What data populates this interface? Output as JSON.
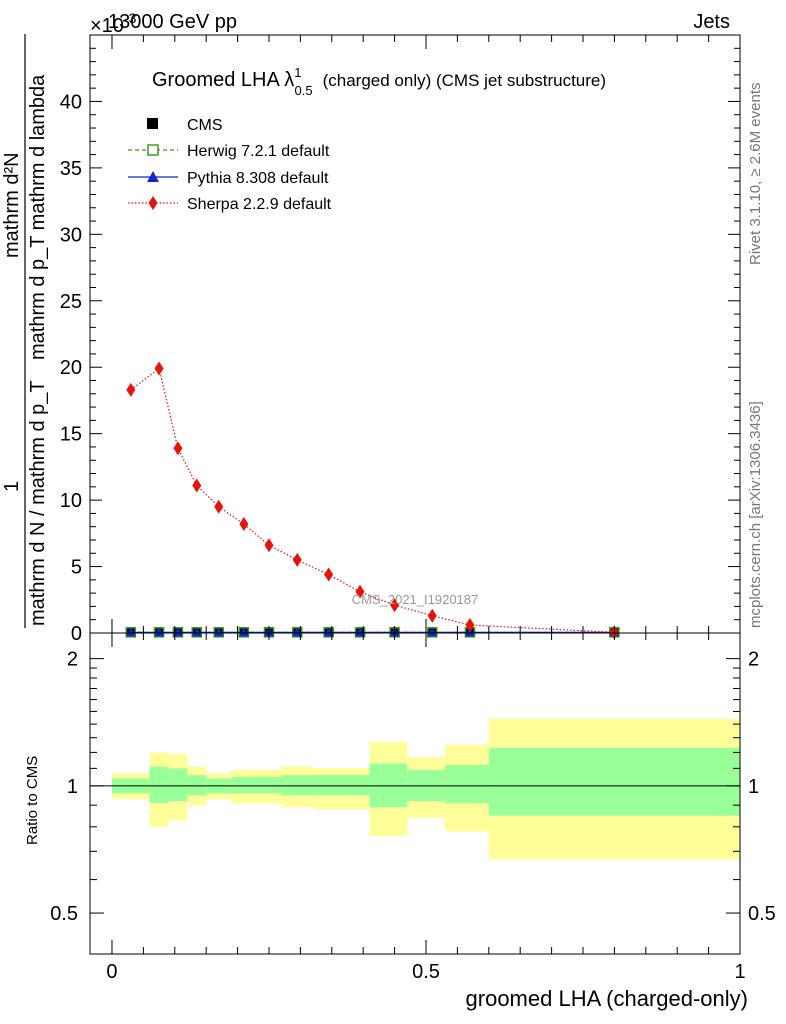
{
  "header": {
    "energy": "13000 GeV pp",
    "multiplier": "×10",
    "multiplier_exp": "-3",
    "process": "Jets"
  },
  "side": {
    "rivet": "Rivet 3.1.10, ≥ 2.6M events",
    "mcplots": "mcplots.cern.ch [arXiv:1306.3436]"
  },
  "watermark": "CMS_2021_I1920187",
  "colors": {
    "cms": "#000000",
    "herwig": "#3a9a1a",
    "pythia": "#1026c8",
    "sherpa": "#e8120c",
    "band_inner": "#99ff99",
    "band_outer": "#ffff99"
  },
  "chart_data": [
    {
      "type": "line",
      "title": "Groomed LHA λ¹₀.₅ (charged only) (CMS jet substructure)",
      "title_main": "Groomed LHA λ",
      "title_sup": "1",
      "title_sub": "0.5",
      "title_rest": "(charged only) (CMS jet substructure)",
      "ylabel_top": "mathrm d²N",
      "ylabel_mid": "mathrm d p_T mathrm d lambda",
      "ylabel_mid2": "mathrm d p_T mathrm d lambda",
      "ylabel_frac": "1",
      "ylabel_bot": "mathrm d N / mathrm d p_T",
      "ylim": [
        0,
        45
      ],
      "yticks": [
        0,
        5,
        10,
        15,
        20,
        25,
        30,
        35,
        40
      ],
      "xlim": [
        -0.035,
        1.0
      ],
      "y_scale_note": "values ×10^-3",
      "legend_position": "top-left",
      "series": [
        {
          "name": "CMS",
          "marker": "filled-square",
          "x": [
            0.03,
            0.075,
            0.105,
            0.135,
            0.17,
            0.21,
            0.25,
            0.295,
            0.345,
            0.395,
            0.45,
            0.51,
            0.57,
            0.8
          ],
          "y": [
            0.05,
            0.05,
            0.05,
            0.05,
            0.05,
            0.05,
            0.05,
            0.05,
            0.05,
            0.05,
            0.05,
            0.05,
            0.05,
            0.05
          ]
        },
        {
          "name": "Herwig 7.2.1 default",
          "marker": "open-square",
          "line": "dashed",
          "x": [
            0.03,
            0.075,
            0.105,
            0.135,
            0.17,
            0.21,
            0.25,
            0.295,
            0.345,
            0.395,
            0.45,
            0.51,
            0.57,
            0.8
          ],
          "y": [
            0.05,
            0.05,
            0.05,
            0.05,
            0.05,
            0.05,
            0.05,
            0.05,
            0.05,
            0.05,
            0.05,
            0.05,
            0.05,
            0.05
          ]
        },
        {
          "name": "Pythia 8.308 default",
          "marker": "triangle",
          "line": "solid",
          "x": [
            0.03,
            0.075,
            0.105,
            0.135,
            0.17,
            0.21,
            0.25,
            0.295,
            0.345,
            0.395,
            0.45,
            0.51,
            0.57,
            0.8
          ],
          "y": [
            0.05,
            0.05,
            0.05,
            0.05,
            0.05,
            0.05,
            0.05,
            0.05,
            0.05,
            0.05,
            0.05,
            0.05,
            0.05,
            0.05
          ]
        },
        {
          "name": "Sherpa 2.2.9 default",
          "marker": "diamond",
          "line": "dotted",
          "x": [
            0.03,
            0.075,
            0.105,
            0.135,
            0.17,
            0.21,
            0.25,
            0.295,
            0.345,
            0.395,
            0.45,
            0.51,
            0.57,
            0.8
          ],
          "y": [
            18.3,
            19.9,
            13.9,
            11.1,
            9.5,
            8.2,
            6.6,
            5.5,
            4.4,
            3.1,
            2.1,
            1.3,
            0.6,
            0.05
          ]
        }
      ]
    },
    {
      "type": "area",
      "ylabel": "Ratio to CMS",
      "xlabel": "groomed LHA (charged-only)",
      "ylim": [
        0.4,
        2.3
      ],
      "ytick_labels": [
        "0.5",
        "1",
        "2"
      ],
      "yticks": [
        0.5,
        1,
        2
      ],
      "xticks": [
        0,
        0.5,
        1
      ],
      "xtick_labels": [
        "0",
        "0.5",
        "1"
      ],
      "xlim": [
        -0.035,
        1.0
      ],
      "bins": [
        {
          "lo": 0.0,
          "hi": 0.06,
          "inner": [
            0.96,
            1.04
          ],
          "outer": [
            0.93,
            1.07
          ]
        },
        {
          "lo": 0.06,
          "hi": 0.09,
          "inner": [
            0.91,
            1.11
          ],
          "outer": [
            0.8,
            1.2
          ]
        },
        {
          "lo": 0.09,
          "hi": 0.12,
          "inner": [
            0.92,
            1.1
          ],
          "outer": [
            0.83,
            1.19
          ]
        },
        {
          "lo": 0.12,
          "hi": 0.15,
          "inner": [
            0.95,
            1.06
          ],
          "outer": [
            0.9,
            1.11
          ]
        },
        {
          "lo": 0.15,
          "hi": 0.19,
          "inner": [
            0.96,
            1.04
          ],
          "outer": [
            0.93,
            1.07
          ]
        },
        {
          "lo": 0.19,
          "hi": 0.27,
          "inner": [
            0.96,
            1.05
          ],
          "outer": [
            0.91,
            1.09
          ]
        },
        {
          "lo": 0.27,
          "hi": 0.32,
          "inner": [
            0.95,
            1.06
          ],
          "outer": [
            0.89,
            1.11
          ]
        },
        {
          "lo": 0.32,
          "hi": 0.41,
          "inner": [
            0.95,
            1.06
          ],
          "outer": [
            0.88,
            1.1
          ]
        },
        {
          "lo": 0.41,
          "hi": 0.47,
          "inner": [
            0.89,
            1.13
          ],
          "outer": [
            0.76,
            1.27
          ]
        },
        {
          "lo": 0.47,
          "hi": 0.53,
          "inner": [
            0.92,
            1.09
          ],
          "outer": [
            0.84,
            1.17
          ]
        },
        {
          "lo": 0.53,
          "hi": 0.6,
          "inner": [
            0.91,
            1.12
          ],
          "outer": [
            0.78,
            1.25
          ]
        },
        {
          "lo": 0.6,
          "hi": 1.0,
          "inner": [
            0.85,
            1.23
          ],
          "outer": [
            0.67,
            1.44
          ]
        }
      ]
    }
  ]
}
